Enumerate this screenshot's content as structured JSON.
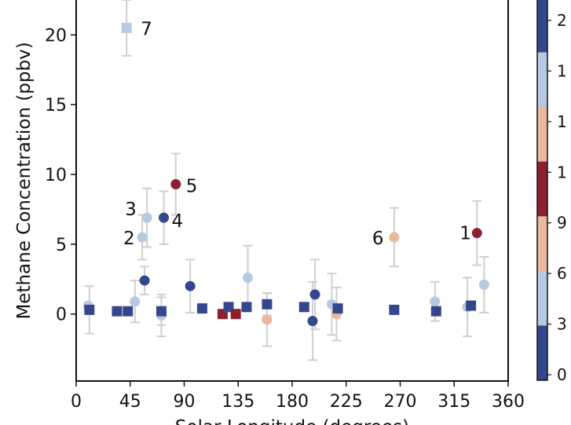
{
  "chart_data": {
    "type": "scatter",
    "xlabel": "Solar Longitude (degrees)",
    "ylabel": "Methane Concentration (ppbv)",
    "xlim": [
      0,
      360
    ],
    "ylim": [
      -4.8,
      22.5
    ],
    "xticks": [
      0,
      45,
      90,
      135,
      180,
      225,
      270,
      315,
      360
    ],
    "yticks": [
      0,
      5,
      10,
      15,
      20
    ],
    "grid": false,
    "colorbar": {
      "position": "right",
      "colors": [
        "#35478c",
        "#b6c9e2",
        "#eab79f",
        "#8b2030",
        "#eab79f",
        "#b6c9e2",
        "#35478c"
      ],
      "visible_labels": [
        "2",
        "1",
        "1",
        "1",
        "9",
        "6",
        "3",
        "0"
      ]
    },
    "points": [
      {
        "x": 10,
        "y": 0.6,
        "err": 0,
        "marker": "circle",
        "color": "#b6c9e2"
      },
      {
        "x": 11,
        "y": 0.3,
        "err": 1.7,
        "marker": "square",
        "color": "#35478c"
      },
      {
        "x": 34,
        "y": 0.2,
        "err": 0,
        "marker": "square",
        "color": "#35478c"
      },
      {
        "x": 42,
        "y": 20.5,
        "err": 2.0,
        "marker": "square",
        "color": "#b6c9e2",
        "label": "7"
      },
      {
        "x": 43,
        "y": 0.2,
        "err": 0,
        "marker": "square",
        "color": "#35478c"
      },
      {
        "x": 49,
        "y": 0.9,
        "err": 1.5,
        "marker": "circle",
        "color": "#b6c9e2"
      },
      {
        "x": 55,
        "y": 5.5,
        "err": 1.6,
        "marker": "circle",
        "color": "#b6c9e2",
        "label": "2"
      },
      {
        "x": 57,
        "y": 2.4,
        "err": 1.0,
        "marker": "circle",
        "color": "#35478c"
      },
      {
        "x": 59,
        "y": 6.9,
        "err": 2.1,
        "marker": "circle",
        "color": "#b6c9e2",
        "label": "3"
      },
      {
        "x": 71,
        "y": -0.1,
        "err": 1.5,
        "marker": "circle",
        "color": "#b6c9e2"
      },
      {
        "x": 71,
        "y": 0.2,
        "err": 1.0,
        "marker": "square",
        "color": "#35478c"
      },
      {
        "x": 73,
        "y": 6.9,
        "err": 1.9,
        "marker": "circle",
        "color": "#35478c",
        "label": "4"
      },
      {
        "x": 83,
        "y": 9.3,
        "err": 2.2,
        "marker": "circle",
        "color": "#8b2030",
        "label": "5"
      },
      {
        "x": 95,
        "y": 2.0,
        "err": 1.9,
        "marker": "circle",
        "color": "#35478c"
      },
      {
        "x": 105,
        "y": 0.4,
        "err": 0,
        "marker": "square",
        "color": "#35478c"
      },
      {
        "x": 122,
        "y": 0.0,
        "err": 0,
        "marker": "square",
        "color": "#8b2030"
      },
      {
        "x": 127,
        "y": 0.5,
        "err": 0,
        "marker": "square",
        "color": "#35478c"
      },
      {
        "x": 133,
        "y": 0.0,
        "err": 0,
        "marker": "square",
        "color": "#8b2030"
      },
      {
        "x": 142,
        "y": 0.5,
        "err": 0,
        "marker": "square",
        "color": "#35478c"
      },
      {
        "x": 143,
        "y": 2.6,
        "err": 2.3,
        "marker": "circle",
        "color": "#b6c9e2"
      },
      {
        "x": 159,
        "y": -0.4,
        "err": 1.9,
        "marker": "circle",
        "color": "#eab79f"
      },
      {
        "x": 159,
        "y": 0.7,
        "err": 0.8,
        "marker": "square",
        "color": "#35478c"
      },
      {
        "x": 190,
        "y": 0.5,
        "err": 0,
        "marker": "square",
        "color": "#35478c"
      },
      {
        "x": 197,
        "y": -0.5,
        "err": 2.8,
        "marker": "circle",
        "color": "#35478c"
      },
      {
        "x": 199,
        "y": 1.4,
        "err": 2.5,
        "marker": "circle",
        "color": "#35478c"
      },
      {
        "x": 213,
        "y": 0.7,
        "err": 2.2,
        "marker": "circle",
        "color": "#b6c9e2"
      },
      {
        "x": 217,
        "y": 0.0,
        "err": 1.9,
        "marker": "circle",
        "color": "#eab79f"
      },
      {
        "x": 218,
        "y": 0.4,
        "err": 0,
        "marker": "square",
        "color": "#35478c"
      },
      {
        "x": 265,
        "y": 0.3,
        "err": 0,
        "marker": "square",
        "color": "#35478c"
      },
      {
        "x": 265,
        "y": 5.5,
        "err": 2.1,
        "marker": "circle",
        "color": "#eab79f",
        "label": "6"
      },
      {
        "x": 299,
        "y": 0.9,
        "err": 1.4,
        "marker": "circle",
        "color": "#b6c9e2"
      },
      {
        "x": 300,
        "y": 0.2,
        "err": 0,
        "marker": "square",
        "color": "#35478c"
      },
      {
        "x": 326,
        "y": 0.5,
        "err": 2.1,
        "marker": "circle",
        "color": "#b6c9e2"
      },
      {
        "x": 329,
        "y": 0.6,
        "err": 0,
        "marker": "square",
        "color": "#35478c"
      },
      {
        "x": 334,
        "y": 5.8,
        "err": 2.3,
        "marker": "circle",
        "color": "#8b2030",
        "label": "1"
      },
      {
        "x": 340,
        "y": 2.1,
        "err": 2.0,
        "marker": "circle",
        "color": "#b6c9e2"
      }
    ]
  }
}
